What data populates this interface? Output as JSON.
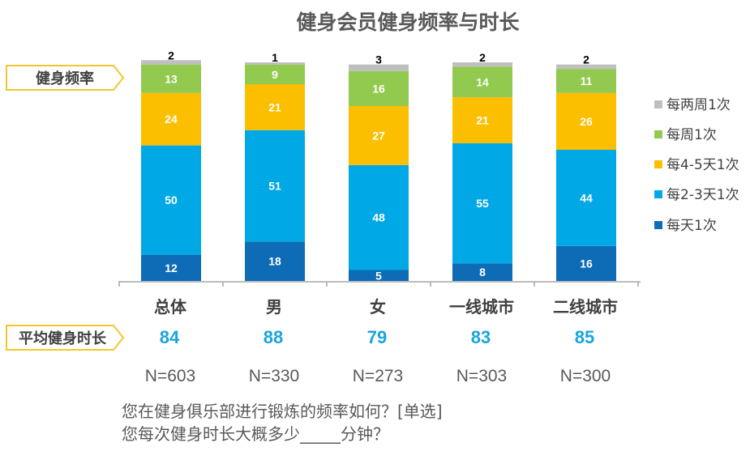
{
  "colors": {
    "daily": "#0E6BB5",
    "two_three": "#00A9E6",
    "four_five": "#FBBF00",
    "weekly": "#92C94F",
    "biweekly": "#BFBFBF",
    "avg_text": "#19A5DB",
    "tag_border": "#F3C62F",
    "title_text": "#595959",
    "axis": "#A6A6A6"
  },
  "chart_data": {
    "type": "bar",
    "stacked": true,
    "title": "健身会员健身频率与时长",
    "categories": [
      "总体",
      "男",
      "女",
      "一线城市",
      "二线城市"
    ],
    "series": [
      {
        "key": "daily",
        "name": "每天1次",
        "values": [
          12,
          18,
          5,
          8,
          16
        ]
      },
      {
        "key": "two_three",
        "name": "每2-3天1次",
        "values": [
          50,
          51,
          48,
          55,
          44
        ]
      },
      {
        "key": "four_five",
        "name": "每4-5天1次",
        "values": [
          24,
          21,
          27,
          21,
          26
        ]
      },
      {
        "key": "weekly",
        "name": "每周1次",
        "values": [
          13,
          9,
          16,
          14,
          11
        ]
      },
      {
        "key": "biweekly",
        "name": "每两周1次",
        "values": [
          2,
          1,
          3,
          2,
          2
        ]
      }
    ],
    "legend_order": [
      "biweekly",
      "weekly",
      "four_five",
      "two_three",
      "daily"
    ],
    "legend_position": "right",
    "ylim": [
      0,
      100
    ],
    "grid": false
  },
  "tags": {
    "frequency": "健身频率",
    "duration": "平均健身时长"
  },
  "avg_duration": [
    "84",
    "88",
    "79",
    "83",
    "85"
  ],
  "sample_sizes": [
    "N=603",
    "N=330",
    "N=273",
    "N=303",
    "N=300"
  ],
  "notes": {
    "line1": "您在健身俱乐部进行锻炼的频率如何？[单选]",
    "line2": "您每次健身时长大概多少_____分钟？"
  }
}
